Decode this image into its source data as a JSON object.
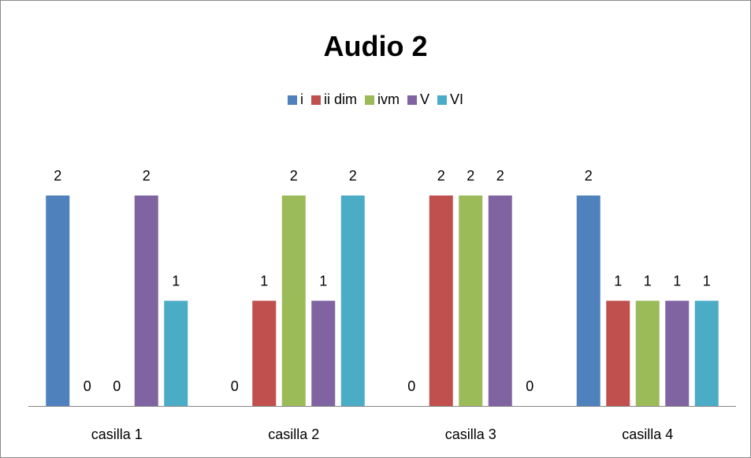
{
  "chart_data": {
    "type": "bar",
    "title": "Audio 2",
    "categories": [
      "casilla 1",
      "casilla 2",
      "casilla 3",
      "casilla 4"
    ],
    "series": [
      {
        "name": "i",
        "color": "#4f81bd",
        "values": [
          2,
          0,
          0,
          2
        ]
      },
      {
        "name": "ii dim",
        "color": "#c0504d",
        "values": [
          0,
          1,
          2,
          1
        ]
      },
      {
        "name": "ivm",
        "color": "#9bbb59",
        "values": [
          0,
          2,
          2,
          1
        ]
      },
      {
        "name": "V",
        "color": "#8064a2",
        "values": [
          2,
          1,
          2,
          1
        ]
      },
      {
        "name": "VI",
        "color": "#4bacc6",
        "values": [
          1,
          2,
          0,
          1
        ]
      }
    ],
    "ylim": [
      0,
      2
    ],
    "xlabel": "",
    "ylabel": "",
    "grid": false,
    "legend": "top",
    "data_labels": true
  }
}
